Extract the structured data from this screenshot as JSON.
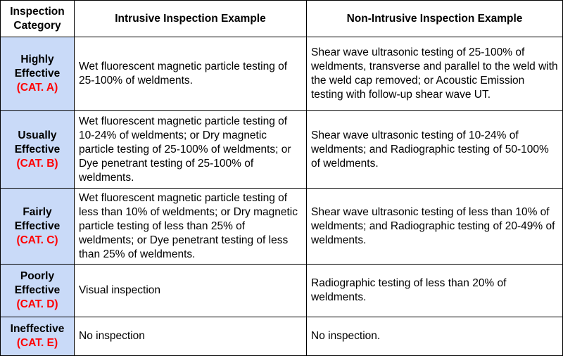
{
  "headers": {
    "category": "Inspection Category",
    "intrusive": "Intrusive Inspection Example",
    "non_intrusive": "Non-Intrusive Inspection Example"
  },
  "rows": [
    {
      "category_name": "Highly Effective",
      "category_code": "(CAT. A)",
      "intrusive": "Wet fluorescent magnetic particle testing of 25-100% of weldments.",
      "non_intrusive": "Shear wave ultrasonic testing of 25-100% of weldments, transverse and parallel to the weld with the weld cap removed; or Acoustic Emission testing with follow-up shear wave UT."
    },
    {
      "category_name": "Usually Effective",
      "category_code": "(CAT. B)",
      "intrusive": "Wet fluorescent magnetic particle testing of 10-24% of weldments; or Dry magnetic particle testing of 25-100% of weldments; or Dye penetrant testing of 25-100% of weldments.",
      "non_intrusive": "Shear wave ultrasonic testing of 10-24% of weldments; and Radiographic testing of 50-100% of weldments."
    },
    {
      "category_name": "Fairly Effective",
      "category_code": "(CAT. C)",
      "intrusive": "Wet fluorescent magnetic particle testing of less than 10% of weldments; or Dry magnetic particle testing of less than 25% of weldments; or Dye penetrant testing of less than 25% of weldments.",
      "non_intrusive": "Shear wave ultrasonic testing of less than 10% of weldments; and Radiographic testing of 20-49% of weldments."
    },
    {
      "category_name": "Poorly Effective",
      "category_code": "(CAT. D)",
      "intrusive": "Visual inspection",
      "non_intrusive": "Radiographic testing of less than 20% of weldments."
    },
    {
      "category_name": "Ineffective",
      "category_code": "(CAT. E)",
      "intrusive": "No inspection",
      "non_intrusive": "No inspection."
    }
  ],
  "colors": {
    "category_fill": "#c9daf8",
    "category_code": "#ff0000",
    "border": "#000000"
  }
}
